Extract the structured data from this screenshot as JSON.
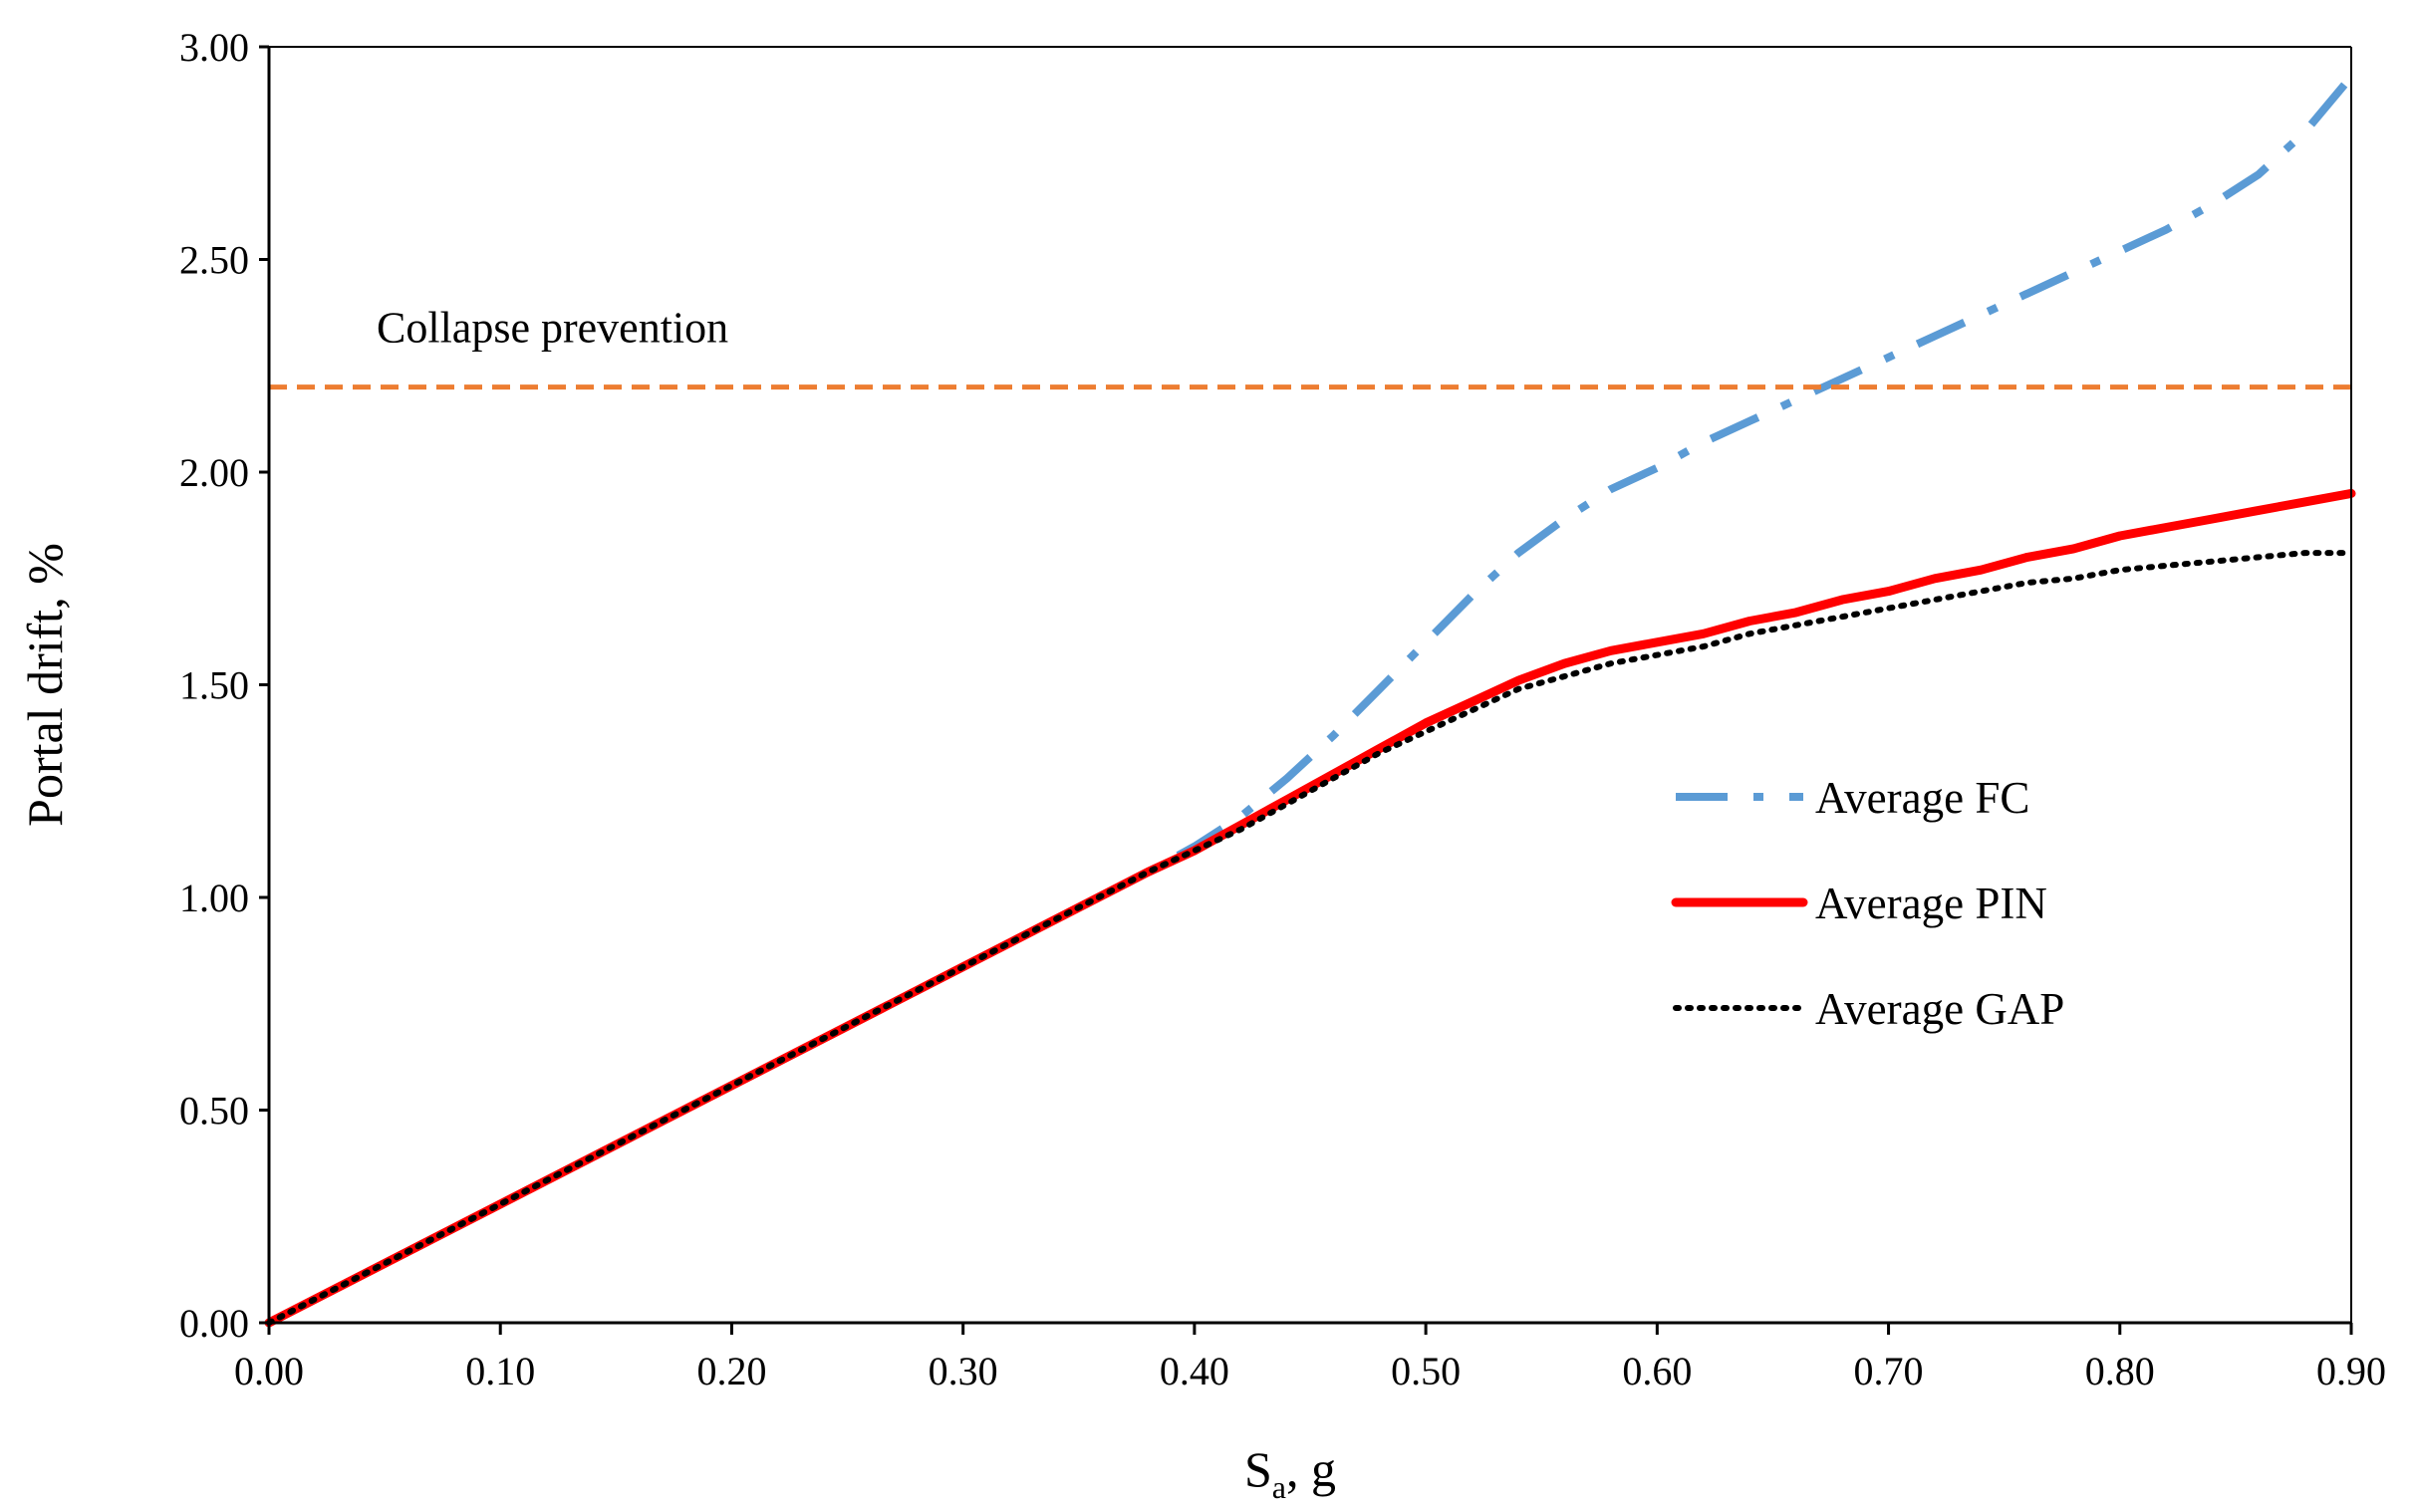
{
  "chart_data": {
    "type": "line",
    "title": "",
    "xlabel": "S",
    "xlabel_sub": "a",
    "xlabel_suffix": ", g",
    "ylabel": "Portal drift, %",
    "xlim": [
      0,
      0.9
    ],
    "ylim": [
      0,
      3.0
    ],
    "xticks": [
      "0.00",
      "0.10",
      "0.20",
      "0.30",
      "0.40",
      "0.50",
      "0.60",
      "0.70",
      "0.80",
      "0.90"
    ],
    "yticks": [
      "0.00",
      "0.50",
      "1.00",
      "1.50",
      "2.00",
      "2.50",
      "3.00"
    ],
    "grid": false,
    "legend_position": "right",
    "reference_line": {
      "label": "Collapse prevention",
      "y": 2.2,
      "color": "#ED7D31"
    },
    "series": [
      {
        "name": "Average FC",
        "color": "#5B9BD5",
        "style": "dash-dot",
        "x": [
          0,
          0.38,
          0.4,
          0.42,
          0.44,
          0.46,
          0.48,
          0.5,
          0.52,
          0.54,
          0.56,
          0.58,
          0.6,
          0.62,
          0.64,
          0.66,
          0.68,
          0.7,
          0.72,
          0.74,
          0.76,
          0.78,
          0.8,
          0.82,
          0.84,
          0.86,
          0.88,
          0.9
        ],
        "y": [
          0,
          1.06,
          1.12,
          1.19,
          1.28,
          1.38,
          1.49,
          1.6,
          1.71,
          1.81,
          1.89,
          1.96,
          2.01,
          2.07,
          2.12,
          2.17,
          2.22,
          2.27,
          2.32,
          2.37,
          2.42,
          2.47,
          2.52,
          2.57,
          2.63,
          2.7,
          2.8,
          2.93
        ]
      },
      {
        "name": "Average PIN",
        "color": "#FF0000",
        "style": "solid",
        "x": [
          0,
          0.38,
          0.4,
          0.42,
          0.44,
          0.46,
          0.48,
          0.5,
          0.52,
          0.54,
          0.56,
          0.58,
          0.6,
          0.62,
          0.64,
          0.66,
          0.68,
          0.7,
          0.72,
          0.74,
          0.76,
          0.78,
          0.8,
          0.82,
          0.84,
          0.86,
          0.88,
          0.9
        ],
        "y": [
          0,
          1.06,
          1.11,
          1.17,
          1.23,
          1.29,
          1.35,
          1.41,
          1.46,
          1.51,
          1.55,
          1.58,
          1.6,
          1.62,
          1.65,
          1.67,
          1.7,
          1.72,
          1.75,
          1.77,
          1.8,
          1.82,
          1.85,
          1.87,
          1.89,
          1.91,
          1.93,
          1.95
        ]
      },
      {
        "name": "Average GAP",
        "color": "#000000",
        "style": "dotted",
        "x": [
          0,
          0.38,
          0.4,
          0.42,
          0.44,
          0.46,
          0.48,
          0.5,
          0.52,
          0.54,
          0.56,
          0.58,
          0.6,
          0.62,
          0.64,
          0.66,
          0.68,
          0.7,
          0.72,
          0.74,
          0.76,
          0.78,
          0.8,
          0.82,
          0.84,
          0.86,
          0.88,
          0.9
        ],
        "y": [
          0,
          1.06,
          1.11,
          1.16,
          1.22,
          1.28,
          1.34,
          1.39,
          1.44,
          1.49,
          1.52,
          1.55,
          1.57,
          1.59,
          1.62,
          1.64,
          1.66,
          1.68,
          1.7,
          1.72,
          1.74,
          1.75,
          1.77,
          1.78,
          1.79,
          1.8,
          1.81,
          1.81
        ]
      }
    ]
  }
}
